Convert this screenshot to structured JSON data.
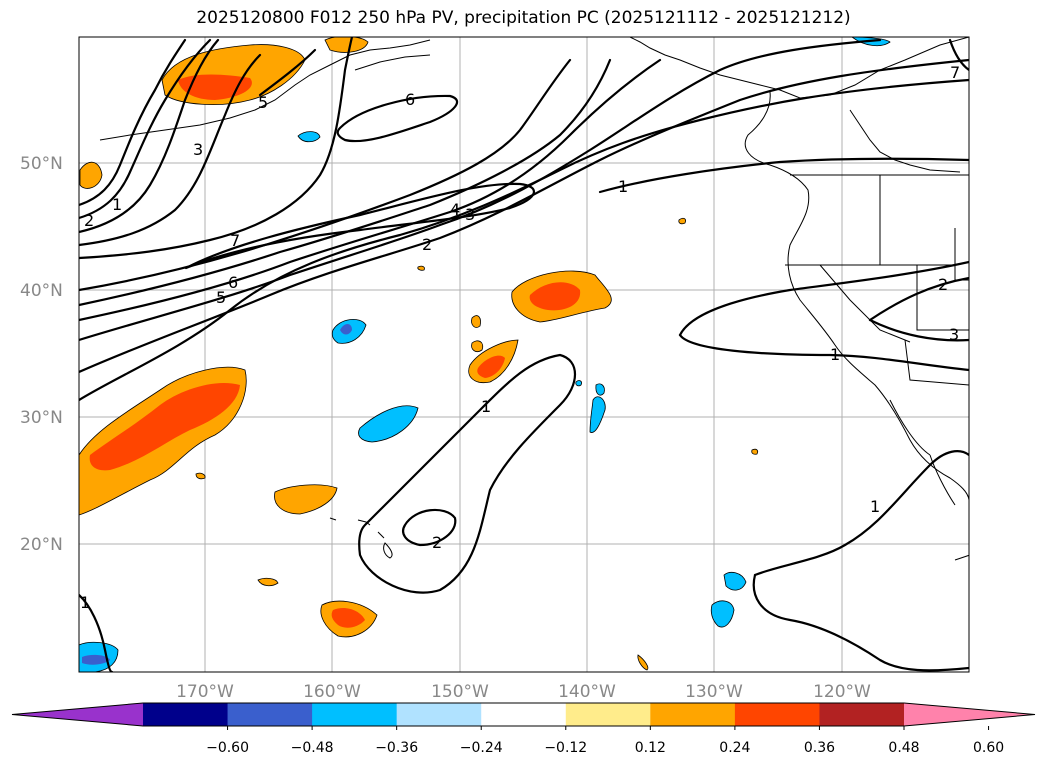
{
  "title": "2025120800 F012 250 hPa PV, precipitation PC (2025121112 - 2025121212)",
  "lat_labels": [
    "50°N",
    "40°N",
    "30°N",
    "20°N"
  ],
  "lon_labels": [
    "170°W",
    "160°W",
    "150°W",
    "140°W",
    "130°W",
    "120°W"
  ],
  "contour_labels": [
    "1",
    "2",
    "3",
    "5",
    "6",
    "7",
    "6",
    "5",
    "4",
    "3",
    "2",
    "1",
    "1",
    "1",
    "2",
    "1",
    "2",
    "3",
    "7",
    "1"
  ],
  "colorbar": {
    "ticks": [
      "−0.60",
      "−0.48",
      "−0.36",
      "−0.24",
      "−0.12",
      "0.12",
      "0.24",
      "0.36",
      "0.48",
      "0.60"
    ],
    "colors": [
      "#9932cc",
      "#00008b",
      "#3a5fcd",
      "#00bfff",
      "#b0e2ff",
      "#ffffff",
      "#ffec8b",
      "#ffa500",
      "#ff4500",
      "#b22222",
      "#ff82ab"
    ]
  }
}
